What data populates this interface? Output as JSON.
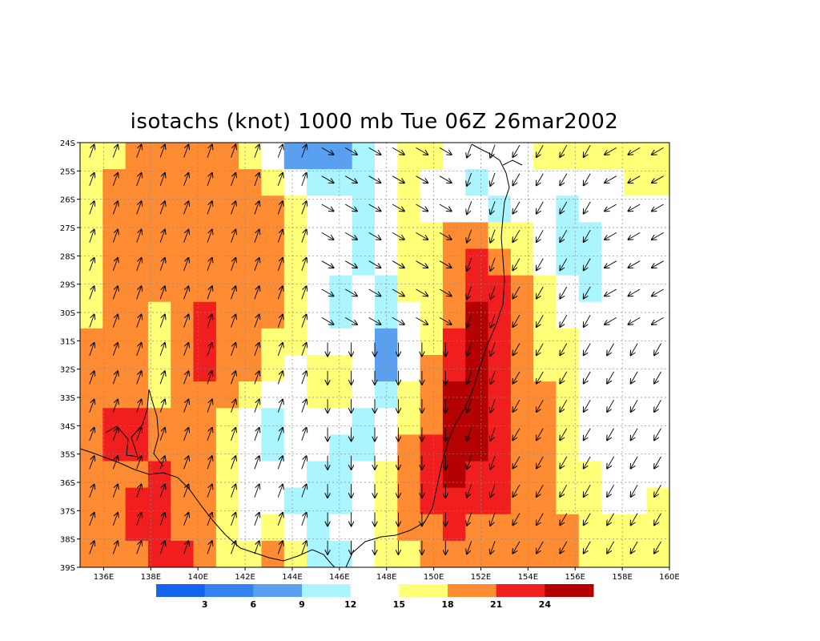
{
  "chart_data": {
    "type": "heatmap",
    "title": "isotachs (knot) 1000 mb Tue 06Z 26mar2002",
    "xlabel": "",
    "ylabel": "",
    "xlim": [
      135,
      160
    ],
    "ylim": [
      -39,
      -24
    ],
    "x_ticks": [
      "136E",
      "138E",
      "140E",
      "142E",
      "144E",
      "146E",
      "148E",
      "150E",
      "152E",
      "154E",
      "156E",
      "158E",
      "160E"
    ],
    "y_ticks": [
      "24S",
      "25S",
      "26S",
      "27S",
      "28S",
      "29S",
      "30S",
      "31S",
      "32S",
      "33S",
      "34S",
      "35S",
      "36S",
      "37S",
      "38S",
      "39S"
    ],
    "grid": true,
    "units": "knot",
    "colorbar": {
      "boundaries": [
        "3",
        "6",
        "9",
        "12",
        "15",
        "18",
        "21",
        "24"
      ],
      "colors": [
        "#1464f0",
        "#3282f0",
        "#5aa0f0",
        "#aaf5ff",
        "#ffffff",
        "#ffff78",
        "#ff8c32",
        "#f01e1e",
        "#b40000"
      ]
    },
    "speed_field": [
      [
        15,
        15,
        18,
        18,
        18,
        18,
        18,
        15,
        12,
        6,
        6,
        6,
        9,
        12,
        15,
        15,
        12,
        12,
        12,
        12,
        15,
        15,
        15,
        15,
        15,
        15
      ],
      [
        15,
        18,
        18,
        18,
        18,
        18,
        18,
        18,
        15,
        12,
        9,
        9,
        9,
        12,
        15,
        12,
        12,
        9,
        12,
        12,
        12,
        12,
        12,
        12,
        15,
        15
      ],
      [
        15,
        18,
        18,
        18,
        18,
        18,
        18,
        18,
        18,
        15,
        12,
        12,
        9,
        12,
        15,
        12,
        12,
        12,
        9,
        12,
        12,
        9,
        12,
        12,
        12,
        12
      ],
      [
        15,
        18,
        18,
        18,
        18,
        18,
        18,
        18,
        18,
        15,
        12,
        12,
        9,
        12,
        15,
        15,
        18,
        18,
        15,
        15,
        12,
        9,
        9,
        12,
        12,
        12
      ],
      [
        15,
        18,
        18,
        18,
        18,
        18,
        18,
        18,
        18,
        15,
        12,
        12,
        9,
        12,
        15,
        15,
        18,
        21,
        18,
        15,
        12,
        9,
        9,
        12,
        12,
        12
      ],
      [
        15,
        18,
        18,
        18,
        18,
        18,
        18,
        18,
        18,
        15,
        12,
        9,
        12,
        9,
        15,
        15,
        18,
        21,
        21,
        18,
        15,
        12,
        9,
        12,
        12,
        12
      ],
      [
        15,
        18,
        18,
        15,
        18,
        21,
        18,
        18,
        18,
        15,
        12,
        9,
        12,
        9,
        12,
        15,
        18,
        24,
        21,
        18,
        15,
        12,
        12,
        12,
        12,
        12
      ],
      [
        18,
        18,
        18,
        15,
        18,
        21,
        18,
        18,
        15,
        15,
        12,
        12,
        12,
        6,
        12,
        15,
        21,
        24,
        21,
        18,
        15,
        15,
        12,
        12,
        12,
        12
      ],
      [
        18,
        18,
        18,
        15,
        18,
        21,
        18,
        18,
        15,
        12,
        15,
        15,
        12,
        6,
        12,
        18,
        21,
        24,
        21,
        18,
        15,
        15,
        12,
        12,
        12,
        12
      ],
      [
        18,
        18,
        18,
        15,
        18,
        18,
        18,
        15,
        12,
        12,
        15,
        15,
        12,
        9,
        15,
        18,
        24,
        24,
        21,
        18,
        18,
        15,
        12,
        12,
        12,
        12
      ],
      [
        18,
        21,
        21,
        18,
        18,
        18,
        15,
        12,
        9,
        12,
        12,
        12,
        9,
        12,
        15,
        18,
        24,
        24,
        21,
        18,
        18,
        15,
        12,
        12,
        12,
        12
      ],
      [
        18,
        21,
        21,
        18,
        18,
        18,
        15,
        12,
        9,
        12,
        12,
        9,
        9,
        12,
        18,
        21,
        24,
        24,
        21,
        18,
        18,
        15,
        12,
        12,
        12,
        12
      ],
      [
        18,
        18,
        18,
        21,
        18,
        18,
        15,
        12,
        12,
        12,
        9,
        9,
        12,
        15,
        18,
        21,
        24,
        21,
        21,
        18,
        18,
        15,
        15,
        12,
        12,
        12
      ],
      [
        18,
        18,
        21,
        21,
        18,
        18,
        15,
        12,
        12,
        9,
        9,
        9,
        12,
        15,
        18,
        21,
        21,
        21,
        21,
        18,
        18,
        15,
        15,
        12,
        12,
        15
      ],
      [
        18,
        18,
        21,
        21,
        18,
        18,
        15,
        12,
        15,
        12,
        9,
        12,
        12,
        15,
        18,
        18,
        21,
        18,
        18,
        18,
        18,
        18,
        15,
        15,
        15,
        15
      ],
      [
        18,
        18,
        18,
        21,
        21,
        18,
        15,
        15,
        18,
        15,
        9,
        9,
        12,
        15,
        15,
        18,
        18,
        18,
        18,
        18,
        18,
        18,
        15,
        15,
        15,
        15
      ]
    ]
  }
}
